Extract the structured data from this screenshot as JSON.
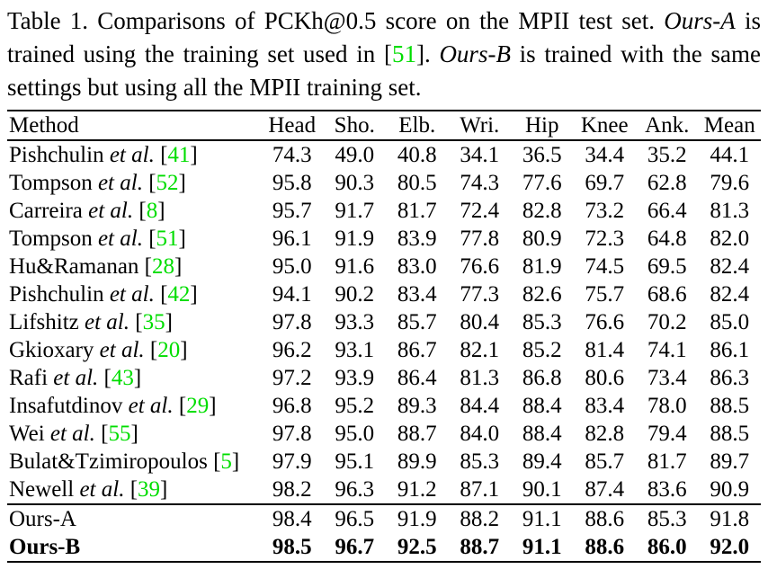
{
  "colors": {
    "citation_green": "#00dd00",
    "text": "#000000",
    "rule": "#000000",
    "background": "#ffffff"
  },
  "caption": {
    "segments": [
      {
        "text": "Table 1.  Comparisons of PCKh@0.5 score on the MPII test set. ",
        "style": "normal"
      },
      {
        "text": "Ours-A",
        "style": "italic"
      },
      {
        "text": " is trained using the training set used in [",
        "style": "normal"
      },
      {
        "text": "51",
        "style": "cite"
      },
      {
        "text": "]. ",
        "style": "normal"
      },
      {
        "text": "Ours-B",
        "style": "italic"
      },
      {
        "text": " is trained with the same settings but using all the MPII training set.",
        "style": "normal"
      }
    ]
  },
  "table": {
    "etal_label": "et al.",
    "headers": [
      "Method",
      "Head",
      "Sho.",
      "Elb.",
      "Wri.",
      "Hip",
      "Knee",
      "Ank.",
      "Mean"
    ],
    "rows": [
      {
        "name": "Pishchulin",
        "etal": true,
        "cite": "41",
        "values": [
          "74.3",
          "49.0",
          "40.8",
          "34.1",
          "36.5",
          "34.4",
          "35.2",
          "44.1"
        ],
        "bold": false,
        "rule_after": false
      },
      {
        "name": "Tompson",
        "etal": true,
        "cite": "52",
        "values": [
          "95.8",
          "90.3",
          "80.5",
          "74.3",
          "77.6",
          "69.7",
          "62.8",
          "79.6"
        ],
        "bold": false,
        "rule_after": false
      },
      {
        "name": "Carreira",
        "etal": true,
        "cite": "8",
        "values": [
          "95.7",
          "91.7",
          "81.7",
          "72.4",
          "82.8",
          "73.2",
          "66.4",
          "81.3"
        ],
        "bold": false,
        "rule_after": false
      },
      {
        "name": "Tompson",
        "etal": true,
        "cite": "51",
        "values": [
          "96.1",
          "91.9",
          "83.9",
          "77.8",
          "80.9",
          "72.3",
          "64.8",
          "82.0"
        ],
        "bold": false,
        "rule_after": false
      },
      {
        "name": "Hu&Ramanan",
        "etal": false,
        "cite": "28",
        "values": [
          "95.0",
          "91.6",
          "83.0",
          "76.6",
          "81.9",
          "74.5",
          "69.5",
          "82.4"
        ],
        "bold": false,
        "rule_after": false
      },
      {
        "name": "Pishchulin",
        "etal": true,
        "cite": "42",
        "values": [
          "94.1",
          "90.2",
          "83.4",
          "77.3",
          "82.6",
          "75.7",
          "68.6",
          "82.4"
        ],
        "bold": false,
        "rule_after": false
      },
      {
        "name": "Lifshitz",
        "etal": true,
        "cite": "35",
        "values": [
          "97.8",
          "93.3",
          "85.7",
          "80.4",
          "85.3",
          "76.6",
          "70.2",
          "85.0"
        ],
        "bold": false,
        "rule_after": false
      },
      {
        "name": "Gkioxary",
        "etal": true,
        "cite": "20",
        "values": [
          "96.2",
          "93.1",
          "86.7",
          "82.1",
          "85.2",
          "81.4",
          "74.1",
          "86.1"
        ],
        "bold": false,
        "rule_after": false
      },
      {
        "name": "Rafi",
        "etal": true,
        "cite": "43",
        "values": [
          "97.2",
          "93.9",
          "86.4",
          "81.3",
          "86.8",
          "80.6",
          "73.4",
          "86.3"
        ],
        "bold": false,
        "rule_after": false
      },
      {
        "name": "Insafutdinov",
        "etal": true,
        "cite": "29",
        "values": [
          "96.8",
          "95.2",
          "89.3",
          "84.4",
          "88.4",
          "83.4",
          "78.0",
          "88.5"
        ],
        "bold": false,
        "rule_after": false
      },
      {
        "name": "Wei",
        "etal": true,
        "cite": "55",
        "values": [
          "97.8",
          "95.0",
          "88.7",
          "84.0",
          "88.4",
          "82.8",
          "79.4",
          "88.5"
        ],
        "bold": false,
        "rule_after": false
      },
      {
        "name": "Bulat&Tzimiropoulos",
        "etal": false,
        "cite": "5",
        "values": [
          "97.9",
          "95.1",
          "89.9",
          "85.3",
          "89.4",
          "85.7",
          "81.7",
          "89.7"
        ],
        "bold": false,
        "rule_after": false
      },
      {
        "name": "Newell",
        "etal": true,
        "cite": "39",
        "values": [
          "98.2",
          "96.3",
          "91.2",
          "87.1",
          "90.1",
          "87.4",
          "83.6",
          "90.9"
        ],
        "bold": false,
        "rule_after": true
      },
      {
        "name": "Ours-A",
        "etal": false,
        "cite": null,
        "values": [
          "98.4",
          "96.5",
          "91.9",
          "88.2",
          "91.1",
          "88.6",
          "85.3",
          "91.8"
        ],
        "bold": false,
        "rule_after": false
      },
      {
        "name": "Ours-B",
        "etal": false,
        "cite": null,
        "values": [
          "98.5",
          "96.7",
          "92.5",
          "88.7",
          "91.1",
          "88.6",
          "86.0",
          "92.0"
        ],
        "bold": true,
        "rule_after": false
      }
    ]
  }
}
